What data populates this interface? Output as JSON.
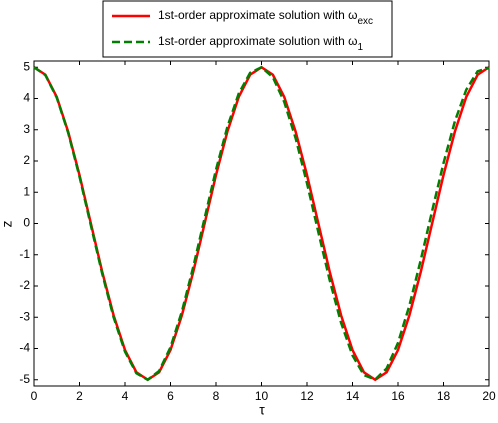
{
  "chart_data": {
    "type": "line",
    "xlabel": "τ",
    "ylabel": "z",
    "x": [
      0,
      0.5,
      1,
      1.5,
      2,
      2.5,
      3,
      3.5,
      4,
      4.5,
      5,
      5.5,
      6,
      6.5,
      7,
      7.5,
      8,
      8.5,
      9,
      9.5,
      10,
      10.5,
      11,
      11.5,
      12,
      12.5,
      13,
      13.5,
      14,
      14.5,
      15,
      15.5,
      16,
      16.5,
      17,
      17.5,
      18,
      18.5,
      19,
      19.5,
      20
    ],
    "series": [
      {
        "name": "1st-order approximate solution with  ω",
        "subscript": "exc",
        "color": "#ff0000",
        "dash": "solid",
        "values": [
          5,
          4.76,
          4.05,
          2.94,
          1.55,
          0,
          -1.55,
          -2.94,
          -4.05,
          -4.76,
          -5,
          -4.76,
          -4.05,
          -2.94,
          -1.55,
          0,
          1.55,
          2.94,
          4.05,
          4.76,
          5,
          4.76,
          4.05,
          2.94,
          1.55,
          0,
          -1.55,
          -2.94,
          -4.05,
          -4.76,
          -5,
          -4.76,
          -4.05,
          -2.94,
          -1.55,
          0,
          1.55,
          2.94,
          4.05,
          4.76,
          5
        ]
      },
      {
        "name": "1st-order approximate solution with  ω",
        "subscript": "1",
        "color": "#007f00",
        "dash": "dashed",
        "values": [
          5,
          4.75,
          4.03,
          2.91,
          1.5,
          -0.06,
          -1.61,
          -3,
          -4.1,
          -4.79,
          -5,
          -4.72,
          -3.96,
          -2.82,
          -1.39,
          0.17,
          1.72,
          3.09,
          4.16,
          4.82,
          5,
          4.68,
          3.89,
          2.73,
          1.29,
          -0.28,
          -1.82,
          -3.18,
          -4.22,
          -4.85,
          -4.99,
          -4.64,
          -3.82,
          -2.63,
          -1.17,
          0.4,
          1.93,
          3.27,
          4.28,
          4.87,
          4.98
        ]
      }
    ],
    "xlim": [
      0,
      20
    ],
    "ylim": [
      -5.2,
      5.2
    ],
    "xticks": [
      0,
      2,
      4,
      6,
      8,
      10,
      12,
      14,
      16,
      18,
      20
    ],
    "yticks": [
      -5,
      -4,
      -3,
      -2,
      -1,
      0,
      1,
      2,
      3,
      4,
      5
    ],
    "grid": false,
    "legend": "top"
  }
}
